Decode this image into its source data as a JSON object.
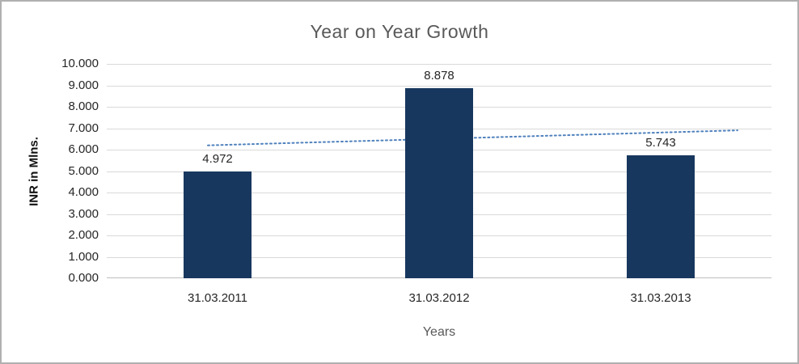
{
  "chart_data": {
    "type": "bar",
    "title": "Year on Year Growth",
    "xlabel": "Years",
    "ylabel": "INR in Mlns.",
    "categories": [
      "31.03.2011",
      "31.03.2012",
      "31.03.2013"
    ],
    "values": [
      4.972,
      8.878,
      5.743
    ],
    "data_labels": [
      "4.972",
      "8.878",
      "5.743"
    ],
    "ylim": [
      0,
      10
    ],
    "ytick_step": 1,
    "ytick_labels": [
      "0.000",
      "1.000",
      "2.000",
      "3.000",
      "4.000",
      "5.000",
      "6.000",
      "7.000",
      "8.000",
      "9.000",
      "10.000"
    ],
    "grid": true,
    "legend": "none",
    "bar_color": "#17375E",
    "trendline": {
      "type": "linear",
      "style": "dotted",
      "color": "#4F81BD",
      "start_value": 6.2,
      "end_value": 6.9
    }
  }
}
